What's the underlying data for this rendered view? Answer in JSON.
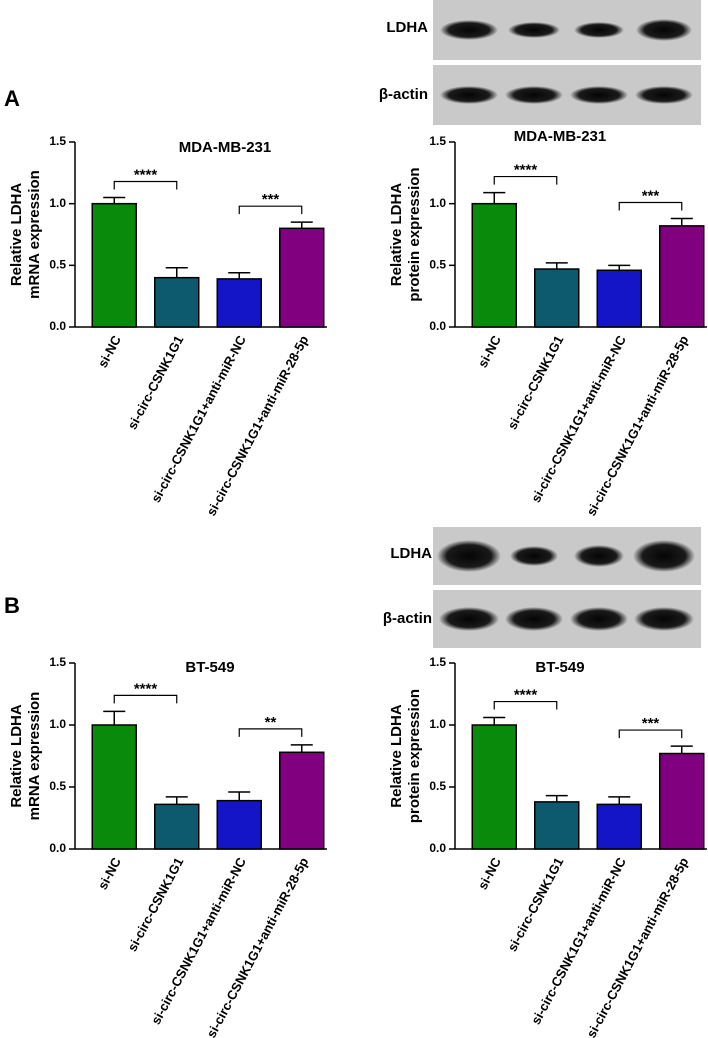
{
  "panel_labels": [
    "A",
    "B"
  ],
  "blots": [
    {
      "labels": [
        "LDHA",
        "β-actin"
      ]
    },
    {
      "labels": [
        "LDHA",
        "β-actin"
      ]
    }
  ],
  "chart_data": [
    {
      "type": "bar",
      "title": "MDA-MB-231",
      "ylabel": [
        "Relative LDHA",
        "mRNA expression"
      ],
      "categories": [
        "si-NC",
        "si-circ-CSNK1G1",
        "si-circ-CSNK1G1+anti-miR-NC",
        "si-circ-CSNK1G1+anti-miR-28-5p"
      ],
      "values": [
        1.0,
        0.4,
        0.39,
        0.8
      ],
      "errors": [
        0.05,
        0.08,
        0.05,
        0.05
      ],
      "colors": [
        "#0a8a0a",
        "#0d5a6e",
        "#1515c8",
        "#800080"
      ],
      "ylim": [
        0,
        1.5
      ],
      "yticks": [
        {
          "value": 0,
          "label": "0.0"
        },
        0.5,
        {
          "value": 1,
          "label": "1.0"
        },
        1.5
      ],
      "annotations": [
        {
          "categories": [
            0,
            1
          ],
          "label": "****"
        },
        {
          "categories": [
            2,
            3
          ],
          "label": "***"
        }
      ]
    },
    {
      "type": "bar",
      "title": "MDA-MB-231",
      "ylabel": [
        "Relative LDHA",
        "protein expression"
      ],
      "categories": [
        "si-NC",
        "si-circ-CSNK1G1",
        "si-circ-CSNK1G1+anti-miR-NC",
        "si-circ-CSNK1G1+anti-miR-28-5p"
      ],
      "values": [
        1.0,
        0.47,
        0.46,
        0.82
      ],
      "errors": [
        0.09,
        0.05,
        0.04,
        0.06
      ],
      "colors": [
        "#0a8a0a",
        "#0d5a6e",
        "#1515c8",
        "#800080"
      ],
      "ylim": [
        0,
        1.5
      ],
      "yticks": [
        {
          "value": 0,
          "label": "0.0"
        },
        0.5,
        {
          "value": 1,
          "label": "1.0"
        },
        1.5
      ],
      "annotations": [
        {
          "categories": [
            0,
            1
          ],
          "label": "****"
        },
        {
          "categories": [
            2,
            3
          ],
          "label": "***"
        }
      ]
    },
    {
      "type": "bar",
      "title": "BT-549",
      "ylabel": [
        "Relative LDHA",
        "mRNA expression"
      ],
      "categories": [
        "si-NC",
        "si-circ-CSNK1G1",
        "si-circ-CSNK1G1+anti-miR-NC",
        "si-circ-CSNK1G1+anti-miR-28-5p"
      ],
      "values": [
        1.0,
        0.36,
        0.39,
        0.78
      ],
      "errors": [
        0.11,
        0.06,
        0.07,
        0.06
      ],
      "colors": [
        "#0a8a0a",
        "#0d5a6e",
        "#1515c8",
        "#800080"
      ],
      "ylim": [
        0,
        1.5
      ],
      "yticks": [
        {
          "value": 0,
          "label": "0.0"
        },
        0.5,
        {
          "value": 1,
          "label": "1.0"
        },
        1.5
      ],
      "annotations": [
        {
          "categories": [
            0,
            1
          ],
          "label": "****"
        },
        {
          "categories": [
            2,
            3
          ],
          "label": "**"
        }
      ]
    },
    {
      "type": "bar",
      "title": "BT-549",
      "ylabel": [
        "Relative LDHA",
        "protein expression"
      ],
      "categories": [
        "si-NC",
        "si-circ-CSNK1G1",
        "si-circ-CSNK1G1+anti-miR-NC",
        "si-circ-CSNK1G1+anti-miR-28-5p"
      ],
      "values": [
        1.0,
        0.38,
        0.36,
        0.77
      ],
      "errors": [
        0.06,
        0.05,
        0.06,
        0.06
      ],
      "colors": [
        "#0a8a0a",
        "#0d5a6e",
        "#1515c8",
        "#800080"
      ],
      "ylim": [
        0,
        1.5
      ],
      "yticks": [
        {
          "value": 0,
          "label": "0.0"
        },
        0.5,
        {
          "value": 1,
          "label": "1.0"
        },
        1.5
      ],
      "annotations": [
        {
          "categories": [
            0,
            1
          ],
          "label": "****"
        },
        {
          "categories": [
            2,
            3
          ],
          "label": "***"
        }
      ]
    }
  ]
}
